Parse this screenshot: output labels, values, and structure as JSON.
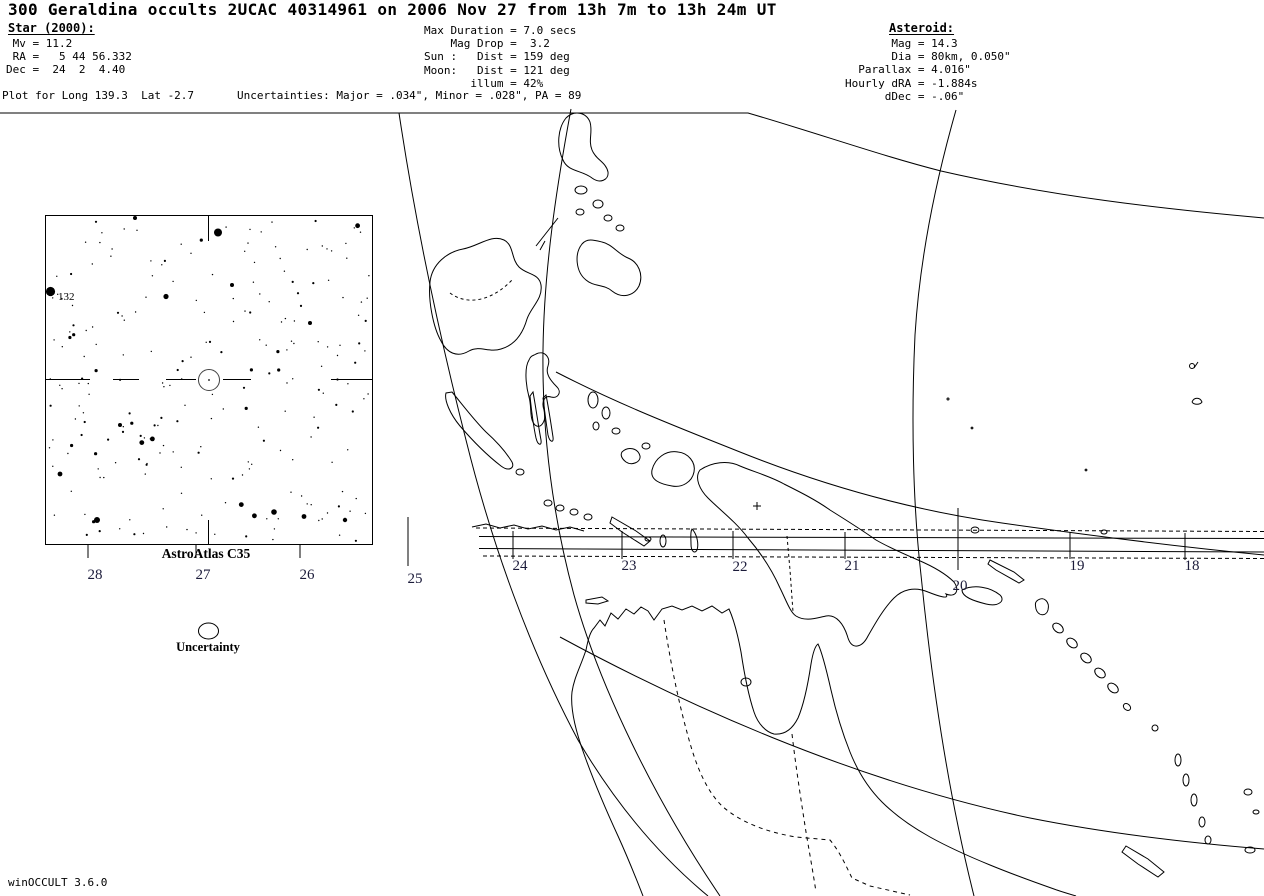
{
  "window": {
    "background": "#ffffff",
    "ink": "#000000",
    "label_ink": "#1b1b3a"
  },
  "header": {
    "title": "300 Geraldina occults 2UCAC 40314961 on 2006 Nov 27 from 13h 7m to 13h 24m UT",
    "star": {
      "heading": "Star (2000):",
      "details": " Mv = 11.2\n RA =   5 44 56.332\nDec =  24  2  4.40"
    },
    "event": {
      "details": "Max Duration = 7.0 secs\n    Mag Drop =  3.2\nSun :   Dist = 159 deg\nMoon:   Dist = 121 deg\n       illum = 42%"
    },
    "asteroid": {
      "heading": "Asteroid:",
      "details": "       Mag = 14.3\n       Dia = 80km, 0.050\"\n  Parallax = 4.016\"\nHourly dRA = -1.884s\n      dDec = -.06\""
    },
    "plot_info": "Plot for Long 139.3  Lat -2.7",
    "uncertainties": "Uncertainties: Major = .034\", Minor = .028\", PA = 89"
  },
  "finder_chart": {
    "atlas_label": "AstroAtlas C35",
    "bright_star_label": "132"
  },
  "legend": {
    "uncertainty_label": "Uncertainty"
  },
  "map": {
    "center_marker": "+",
    "minute_ticks": [
      {
        "label": "28"
      },
      {
        "label": "27"
      },
      {
        "label": "26"
      },
      {
        "label": "25"
      },
      {
        "label": "24"
      },
      {
        "label": "23"
      },
      {
        "label": "22"
      },
      {
        "label": "21"
      },
      {
        "label": "20"
      },
      {
        "label": "19"
      },
      {
        "label": "18"
      }
    ]
  },
  "footer": {
    "app_version": "winOCCULT 3.6.0"
  }
}
